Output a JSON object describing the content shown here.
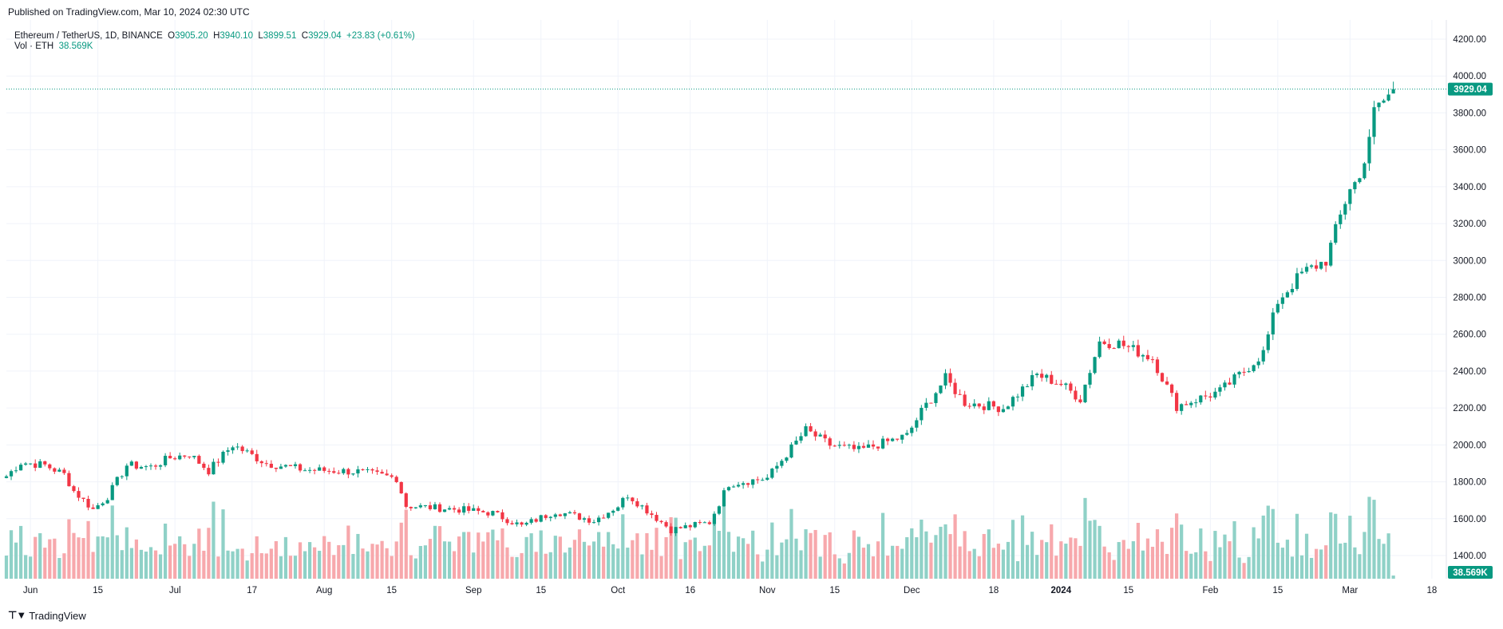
{
  "header": {
    "published": "Published on TradingView.com, Mar 10, 2024 02:30 UTC"
  },
  "legend": {
    "symbol": "Ethereum / TetherUS, 1D, BINANCE",
    "open_label": "O",
    "open": "3905.20",
    "high_label": "H",
    "high": "3940.10",
    "low_label": "L",
    "low": "3899.51",
    "close_label": "C",
    "close": "3929.04",
    "change": "+23.83 (+0.61%)",
    "vol_label": "Vol · ETH",
    "vol_value": "38.569K"
  },
  "footer": {
    "brand": "TradingView"
  },
  "colors": {
    "up": "#089981",
    "down": "#f23645",
    "vol_up": "#8fd1c7",
    "vol_down": "#f7a8ac",
    "grid": "#f0f3fa",
    "last_price_line": "#089981"
  },
  "chart_data": {
    "type": "candlestick",
    "title": "Ethereum / TetherUS, 1D, BINANCE",
    "ylim": [
      1350,
      4250
    ],
    "y_ticks": [
      "4200.00",
      "4000.00",
      "3800.00",
      "3600.00",
      "3400.00",
      "3200.00",
      "3000.00",
      "2800.00",
      "2600.00",
      "2400.00",
      "2200.00",
      "2000.00",
      "1800.00",
      "1600.00",
      "1400.00"
    ],
    "x_tick_labels": [
      "Jun",
      "15",
      "Jul",
      "17",
      "Aug",
      "15",
      "Sep",
      "15",
      "Oct",
      "16",
      "Nov",
      "15",
      "Dec",
      "18",
      "2024",
      "15",
      "Feb",
      "15",
      "Mar",
      "18"
    ],
    "x_tick_dates": [
      "2023-06-01",
      "2023-06-15",
      "2023-07-01",
      "2023-07-17",
      "2023-08-01",
      "2023-08-15",
      "2023-09-01",
      "2023-09-15",
      "2023-10-01",
      "2023-10-16",
      "2023-11-01",
      "2023-11-15",
      "2023-12-01",
      "2023-12-18",
      "2024-01-01",
      "2024-01-15",
      "2024-02-01",
      "2024-02-15",
      "2024-03-01",
      "2024-03-18"
    ],
    "x_range": [
      "2023-05-27",
      "2024-03-21"
    ],
    "last_price": "3929.04",
    "last_volume": "38.569K",
    "grid": true,
    "legend_position": "top-left",
    "anchors": [
      [
        "2023-05-27",
        1830
      ],
      [
        "2023-05-30",
        1905
      ],
      [
        "2023-06-04",
        1890
      ],
      [
        "2023-06-08",
        1840
      ],
      [
        "2023-06-10",
        1750
      ],
      [
        "2023-06-14",
        1650
      ],
      [
        "2023-06-17",
        1720
      ],
      [
        "2023-06-21",
        1890
      ],
      [
        "2023-06-26",
        1880
      ],
      [
        "2023-06-30",
        1930
      ],
      [
        "2023-07-04",
        1950
      ],
      [
        "2023-07-08",
        1860
      ],
      [
        "2023-07-13",
        2000
      ],
      [
        "2023-07-20",
        1900
      ],
      [
        "2023-07-28",
        1865
      ],
      [
        "2023-08-08",
        1855
      ],
      [
        "2023-08-16",
        1820
      ],
      [
        "2023-08-18",
        1670
      ],
      [
        "2023-08-29",
        1650
      ],
      [
        "2023-09-05",
        1630
      ],
      [
        "2023-09-11",
        1560
      ],
      [
        "2023-09-18",
        1640
      ],
      [
        "2023-09-26",
        1590
      ],
      [
        "2023-10-01",
        1670
      ],
      [
        "2023-10-03",
        1730
      ],
      [
        "2023-10-12",
        1540
      ],
      [
        "2023-10-20",
        1580
      ],
      [
        "2023-10-24",
        1790
      ],
      [
        "2023-11-01",
        1820
      ],
      [
        "2023-11-09",
        2080
      ],
      [
        "2023-11-14",
        2000
      ],
      [
        "2023-11-20",
        1970
      ],
      [
        "2023-11-30",
        2050
      ],
      [
        "2023-12-03",
        2180
      ],
      [
        "2023-12-08",
        2360
      ],
      [
        "2023-12-12",
        2230
      ],
      [
        "2023-12-20",
        2200
      ],
      [
        "2023-12-27",
        2380
      ],
      [
        "2024-01-01",
        2330
      ],
      [
        "2024-01-05",
        2250
      ],
      [
        "2024-01-09",
        2560
      ],
      [
        "2024-01-13",
        2550
      ],
      [
        "2024-01-20",
        2470
      ],
      [
        "2024-01-25",
        2210
      ],
      [
        "2024-02-03",
        2290
      ],
      [
        "2024-02-08",
        2400
      ],
      [
        "2024-02-12",
        2500
      ],
      [
        "2024-02-15",
        2780
      ],
      [
        "2024-02-20",
        2930
      ],
      [
        "2024-02-25",
        3000
      ],
      [
        "2024-03-01",
        3400
      ],
      [
        "2024-03-03",
        3440
      ],
      [
        "2024-03-06",
        3800
      ],
      [
        "2024-03-10",
        3929
      ]
    ]
  }
}
